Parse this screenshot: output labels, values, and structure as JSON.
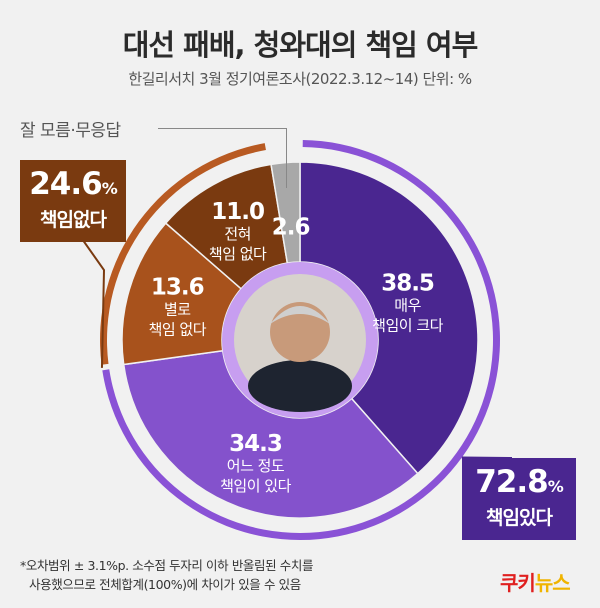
{
  "title": "대선 패배, 청와대의 책임 여부",
  "subtitle": "한길리서치 3월 정기여론조사(2022.3.12~14) 단위: %",
  "dont_know_label": "잘 모름·무응답",
  "groups": {
    "negative": {
      "pct": "24.6",
      "unit": "%",
      "label": "책임없다",
      "color": "#7a3a10"
    },
    "positive": {
      "pct": "72.8",
      "unit": "%",
      "label": "책임있다",
      "color": "#4a2690"
    }
  },
  "note": {
    "line1": "*오차범위 ± 3.1%p. 소수점 두자리 이하 반올림된 수치를",
    "line2": "사용했으므로 전체합계(100%)에 차이가 있을 수 있음"
  },
  "brand": {
    "part1": "쿠키",
    "part2": "뉴스"
  },
  "chart_data": {
    "type": "pie",
    "title": "대선 패배, 청와대의 책임 여부",
    "unit": "%",
    "categories": [
      "매우 책임이 크다",
      "어느 정도 책임이 있다",
      "별로 책임 없다",
      "전혀 책임 없다",
      "잘 모름·무응답"
    ],
    "values": [
      38.5,
      34.3,
      13.6,
      11.0,
      2.6
    ],
    "value_labels": [
      "38.5",
      "34.3",
      "13.6",
      "11.0",
      "2.6"
    ],
    "label_lines": [
      [
        "매우",
        "책임이 크다"
      ],
      [
        "어느 정도",
        "책임이 있다"
      ],
      [
        "별로",
        "책임 없다"
      ],
      [
        "전혀",
        "책임 없다"
      ],
      []
    ],
    "colors": [
      "#4a2690",
      "#8452cc",
      "#a8521c",
      "#7a3a10",
      "#a8a8a8"
    ],
    "outer_ring": [
      {
        "label": "책임있다",
        "value": 72.8,
        "color": "#8a52d6"
      },
      {
        "label": "책임없다",
        "value": 24.6,
        "color": "#b85a22"
      },
      {
        "label": "잘 모름·무응답",
        "value": 2.6,
        "color": "#f1f1f1"
      }
    ]
  }
}
